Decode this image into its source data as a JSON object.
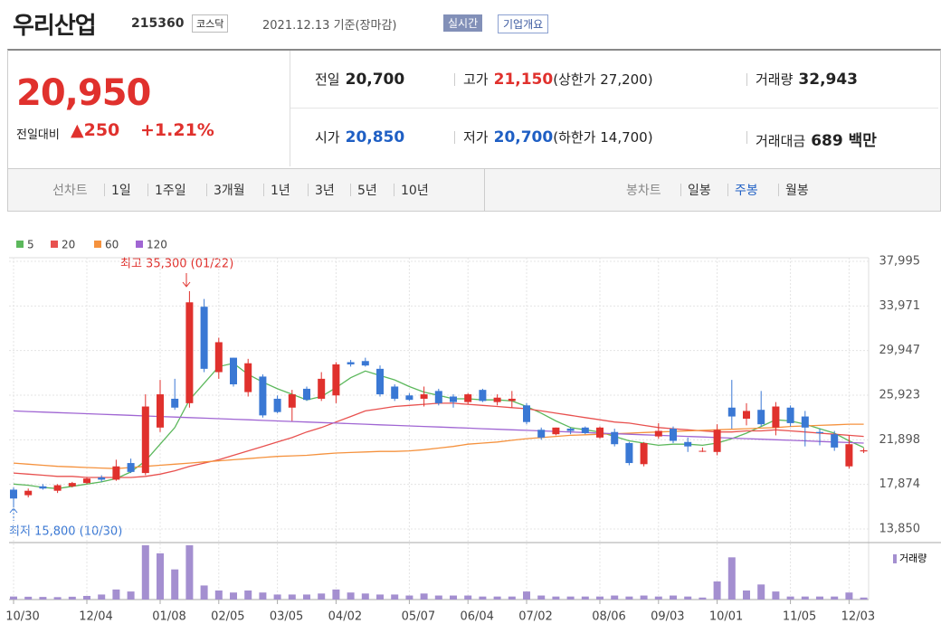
{
  "header": {
    "name": "우리산업",
    "code": "215360",
    "market": "코스닥",
    "date": "2021.12.13 기준(장마감)",
    "realtime": "실시간",
    "overview": "기업개요"
  },
  "quote": {
    "price": "20,950",
    "change_label": "전일대비",
    "change": "▲250",
    "change_pct": "+1.21%",
    "stats": [
      [
        {
          "label": "전일",
          "value": "20,700"
        },
        {
          "label": "고가",
          "value": "21,150",
          "note": "(상한가 27,200)"
        },
        {
          "label": "거래량",
          "value": "32,943"
        }
      ],
      [
        {
          "label": "시가",
          "value": "20,850"
        },
        {
          "label": "저가",
          "value": "20,700",
          "note": "(하한가 14,700)"
        },
        {
          "label": "거래대금",
          "value": "689 백만"
        }
      ]
    ]
  },
  "tabs": {
    "line_label": "선차트",
    "line_items": [
      "1일",
      "1주일",
      "3개월",
      "1년",
      "3년",
      "5년",
      "10년"
    ],
    "candle_label": "봉차트",
    "candle_items": [
      "일봉",
      "주봉",
      "월봉"
    ]
  },
  "chart_data": {
    "type": "candlestick",
    "categories": [
      "10/30",
      null,
      null,
      null,
      null,
      "12/04",
      null,
      null,
      null,
      null,
      "01/08",
      null,
      null,
      null,
      "02/05",
      null,
      null,
      null,
      "03/05",
      null,
      null,
      null,
      "04/02",
      null,
      null,
      null,
      null,
      "05/07",
      null,
      null,
      null,
      "06/04",
      null,
      null,
      null,
      "07/02",
      null,
      null,
      null,
      null,
      "08/06",
      null,
      null,
      null,
      "09/03",
      null,
      null,
      null,
      "10/01",
      null,
      null,
      null,
      null,
      "11/05",
      null,
      null,
      null,
      "12/03",
      null
    ],
    "open": [
      17400,
      16900,
      17700,
      17300,
      17700,
      18000,
      18500,
      18300,
      19800,
      18900,
      23000,
      25600,
      25200,
      33900,
      28000,
      29300,
      26200,
      27600,
      25600,
      24800,
      26500,
      25600,
      25900,
      28900,
      29000,
      28300,
      26700,
      25900,
      25600,
      26300,
      25800,
      25300,
      26400,
      25300,
      25400,
      25000,
      22800,
      22400,
      22900,
      23000,
      22100,
      22600,
      21600,
      19700,
      22200,
      22900,
      21700,
      20900,
      20800,
      24800,
      23800,
      24600,
      23000,
      24800,
      24000,
      22600,
      22400,
      19500,
      20850
    ],
    "high": [
      17600,
      17500,
      17900,
      17900,
      18100,
      18500,
      18700,
      20100,
      20200,
      26000,
      27300,
      27400,
      35300,
      34600,
      31100,
      29300,
      29200,
      27800,
      25900,
      26400,
      26700,
      28000,
      28900,
      29100,
      29300,
      28600,
      26900,
      26100,
      26700,
      26500,
      26000,
      26100,
      26500,
      26000,
      26300,
      25200,
      23000,
      23000,
      23000,
      23100,
      23100,
      22900,
      21700,
      21700,
      23400,
      23100,
      22100,
      21200,
      23300,
      27300,
      25200,
      26300,
      25300,
      25000,
      24500,
      22900,
      22700,
      22300,
      21150
    ],
    "low": [
      15800,
      16700,
      17400,
      17100,
      17600,
      17900,
      18100,
      18200,
      18900,
      18700,
      22600,
      24600,
      24800,
      28000,
      27400,
      26700,
      25800,
      23900,
      24300,
      23600,
      25400,
      25400,
      25200,
      28500,
      28500,
      25800,
      25400,
      25400,
      24900,
      25000,
      24800,
      25100,
      25300,
      25000,
      24800,
      23300,
      21900,
      22300,
      22400,
      22400,
      22000,
      21300,
      19600,
      19500,
      22000,
      21600,
      20800,
      20800,
      20500,
      22900,
      23200,
      23100,
      22300,
      23100,
      21300,
      21400,
      20900,
      19300,
      20700
    ],
    "close": [
      16600,
      17300,
      17500,
      17800,
      18000,
      18400,
      18300,
      19500,
      19000,
      24900,
      26000,
      24800,
      34300,
      28300,
      30700,
      26900,
      28800,
      24100,
      24400,
      26000,
      25500,
      27400,
      28700,
      28700,
      28600,
      26000,
      25600,
      25500,
      26000,
      25200,
      25300,
      26000,
      25400,
      25700,
      25600,
      23500,
      22100,
      23000,
      22700,
      22500,
      23000,
      21500,
      19800,
      21600,
      22700,
      21800,
      21300,
      20900,
      22800,
      24000,
      24500,
      23300,
      24900,
      23400,
      23000,
      22500,
      21200,
      21500,
      20950
    ],
    "volume": [
      150000,
      140000,
      130000,
      120000,
      140000,
      180000,
      250000,
      500000,
      400000,
      2700000,
      2300000,
      1500000,
      2700000,
      700000,
      450000,
      350000,
      450000,
      350000,
      250000,
      250000,
      250000,
      300000,
      500000,
      350000,
      300000,
      250000,
      250000,
      200000,
      300000,
      200000,
      200000,
      200000,
      150000,
      150000,
      150000,
      400000,
      200000,
      150000,
      150000,
      150000,
      150000,
      200000,
      150000,
      200000,
      150000,
      200000,
      150000,
      100000,
      900000,
      2100000,
      450000,
      750000,
      400000,
      150000,
      150000,
      150000,
      150000,
      350000,
      100000
    ],
    "volume_label": "거래량",
    "up_color": "#e0312d",
    "down_color": "#3a78d4",
    "volume_color": "#a48fd0",
    "series": [
      {
        "name": "5",
        "color": "#5cb85c",
        "values": [
          17900,
          17800,
          17600,
          17500,
          17700,
          17900,
          18100,
          18400,
          19000,
          20000,
          21500,
          23000,
          25500,
          27000,
          28500,
          28800,
          27800,
          27100,
          26500,
          26000,
          25500,
          25800,
          26600,
          27500,
          28100,
          27700,
          27300,
          26700,
          26200,
          25900,
          25600,
          25600,
          25500,
          25500,
          25400,
          24900,
          24300,
          23600,
          23000,
          22800,
          22600,
          22200,
          21800,
          21600,
          21400,
          21500,
          21500,
          21400,
          21600,
          22000,
          22500,
          23100,
          23700,
          23600,
          23300,
          22900,
          22500,
          21800,
          21200
        ]
      },
      {
        "name": "20",
        "color": "#e8514f",
        "values": [
          18900,
          18800,
          18700,
          18600,
          18600,
          18500,
          18500,
          18500,
          18500,
          18600,
          18800,
          19100,
          19500,
          19800,
          20100,
          20500,
          20900,
          21300,
          21700,
          22100,
          22600,
          23000,
          23500,
          24000,
          24500,
          24700,
          24900,
          25000,
          25100,
          25200,
          25200,
          25100,
          25000,
          24900,
          24800,
          24700,
          24500,
          24300,
          24100,
          23900,
          23700,
          23500,
          23400,
          23200,
          23000,
          22900,
          22800,
          22700,
          22600,
          22600,
          22700,
          22700,
          22800,
          22700,
          22600,
          22500,
          22400,
          22300,
          22200
        ]
      },
      {
        "name": "60",
        "color": "#f5923e",
        "values": [
          19800,
          19700,
          19600,
          19500,
          19450,
          19400,
          19350,
          19300,
          19400,
          19500,
          19600,
          19700,
          19800,
          19900,
          20000,
          20100,
          20200,
          20300,
          20400,
          20450,
          20500,
          20600,
          20700,
          20750,
          20800,
          20850,
          20850,
          20900,
          21000,
          21150,
          21300,
          21500,
          21600,
          21700,
          21850,
          22000,
          22100,
          22200,
          22300,
          22350,
          22400,
          22450,
          22500,
          22550,
          22600,
          22650,
          22700,
          22750,
          22800,
          22850,
          22900,
          22950,
          23000,
          23100,
          23150,
          23200,
          23250,
          23300,
          23300
        ]
      },
      {
        "name": "120",
        "color": "#a066d3",
        "values": [
          24500,
          24450,
          24400,
          24350,
          24300,
          24250,
          24200,
          24150,
          24100,
          24050,
          24000,
          23950,
          23900,
          23850,
          23800,
          23750,
          23700,
          23650,
          23600,
          23550,
          23500,
          23450,
          23400,
          23350,
          23300,
          23250,
          23200,
          23150,
          23100,
          23050,
          23000,
          22950,
          22900,
          22850,
          22800,
          22750,
          22700,
          22650,
          22600,
          22550,
          22500,
          22450,
          22400,
          22350,
          22300,
          22250,
          22200,
          22150,
          22100,
          22050,
          22000,
          21950,
          21900,
          21850,
          21800,
          21750,
          21700,
          21650,
          21600
        ]
      }
    ],
    "ylim": [
      13850,
      37995
    ],
    "yticks": [
      {
        "value": 13850,
        "label": "13,850"
      },
      {
        "value": 17874,
        "label": "17,874"
      },
      {
        "value": 21898,
        "label": "21,898"
      },
      {
        "value": 25923,
        "label": "25,923"
      },
      {
        "value": 29947,
        "label": "29,947"
      },
      {
        "value": 33971,
        "label": "33,971"
      },
      {
        "value": 37995,
        "label": "37,995"
      }
    ],
    "grid": true,
    "annotations": [
      {
        "text": "최고 35,300 (01/22)"
      },
      {
        "text": "최저 15,800 (10/30)"
      }
    ]
  }
}
